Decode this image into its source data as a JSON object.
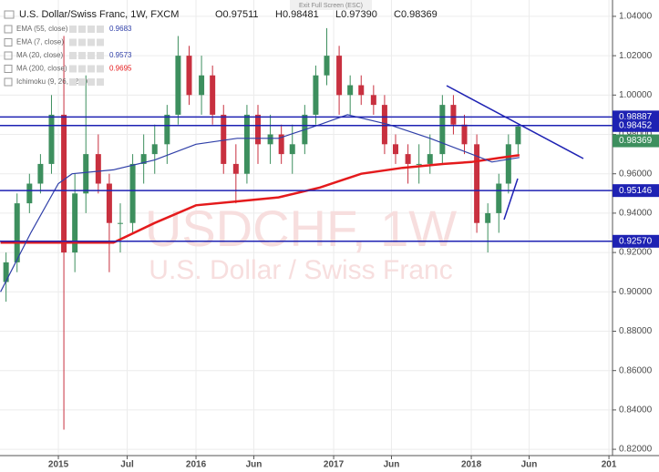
{
  "chart_data": {
    "type": "candlestick",
    "title": "U.S. Dollar/Swiss Franc, 1W, FXCM",
    "ohlc_header": [
      "O0.97511",
      "H0.98481",
      "L0.97390",
      "C0.98369"
    ],
    "exit_fullscreen": "Exit Full Screen (ESC)",
    "watermark": [
      "USDCHF, 1W",
      "U.S. Dollar / Swiss Franc"
    ],
    "x": [
      2014.62,
      2014.7,
      2014.79,
      2014.87,
      2014.95,
      2015.04,
      2015.12,
      2015.2,
      2015.29,
      2015.37,
      2015.45,
      2015.54,
      2015.62,
      2015.7,
      2015.79,
      2015.87,
      2015.95,
      2016.04,
      2016.12,
      2016.2,
      2016.29,
      2016.37,
      2016.45,
      2016.54,
      2016.62,
      2016.7,
      2016.79,
      2016.87,
      2016.95,
      2017.04,
      2017.12,
      2017.2,
      2017.29,
      2017.37,
      2017.45,
      2017.54,
      2017.62,
      2017.7,
      2017.79,
      2017.87,
      2017.95,
      2018.04,
      2018.12,
      2018.2,
      2018.27,
      2018.34
    ],
    "open": [
      0.905,
      0.915,
      0.945,
      0.955,
      0.965,
      0.99,
      0.92,
      0.95,
      0.97,
      0.955,
      0.935,
      0.935,
      0.965,
      0.97,
      0.975,
      0.99,
      1.02,
      1.0,
      1.01,
      0.99,
      0.965,
      0.96,
      0.99,
      0.975,
      0.98,
      0.97,
      0.975,
      0.99,
      1.01,
      1.02,
      1.0,
      1.005,
      1.0,
      0.995,
      0.975,
      0.97,
      0.965,
      0.965,
      0.97,
      0.995,
      0.985,
      0.975,
      0.935,
      0.94,
      0.955,
      0.975
    ],
    "high": [
      0.92,
      0.95,
      0.96,
      0.97,
      1.0,
      1.03,
      0.96,
      1.01,
      0.98,
      0.96,
      0.945,
      0.97,
      0.98,
      0.985,
      0.995,
      1.03,
      1.025,
      1.02,
      1.015,
      0.995,
      0.975,
      0.995,
      0.995,
      0.99,
      0.985,
      0.985,
      0.995,
      1.015,
      1.034,
      1.025,
      1.01,
      1.01,
      1.005,
      1.0,
      0.98,
      0.975,
      0.975,
      0.98,
      1.0,
      1.0,
      0.99,
      0.98,
      0.945,
      0.96,
      0.98,
      0.9848
    ],
    "low": [
      0.895,
      0.91,
      0.94,
      0.95,
      0.96,
      0.83,
      0.91,
      0.94,
      0.95,
      0.91,
      0.92,
      0.93,
      0.955,
      0.96,
      0.965,
      0.985,
      0.995,
      0.99,
      0.985,
      0.96,
      0.945,
      0.955,
      0.965,
      0.965,
      0.965,
      0.96,
      0.97,
      0.985,
      1.005,
      0.99,
      0.99,
      0.995,
      0.99,
      0.97,
      0.965,
      0.955,
      0.955,
      0.96,
      0.965,
      0.98,
      0.97,
      0.93,
      0.92,
      0.93,
      0.95,
      0.97
    ],
    "close": [
      0.915,
      0.945,
      0.955,
      0.965,
      0.99,
      0.92,
      0.95,
      0.97,
      0.955,
      0.935,
      0.935,
      0.965,
      0.97,
      0.975,
      0.99,
      1.02,
      1.0,
      1.01,
      0.99,
      0.965,
      0.96,
      0.99,
      0.975,
      0.98,
      0.97,
      0.975,
      0.99,
      1.01,
      1.02,
      1.0,
      1.005,
      1.0,
      0.995,
      0.975,
      0.97,
      0.965,
      0.965,
      0.97,
      0.995,
      0.985,
      0.975,
      0.935,
      0.94,
      0.955,
      0.975,
      0.984
    ],
    "up_color": "#3d8f5e",
    "down_color": "#c8303f",
    "series": [
      {
        "name": "MA (200, close)",
        "color": "#e41a1c",
        "legend_value": "0.9695",
        "x": [
          2014.58,
          2015.0,
          2015.4,
          2015.7,
          2016.0,
          2016.3,
          2016.6,
          2016.9,
          2017.2,
          2017.5,
          2017.8,
          2018.0,
          2018.2,
          2018.35
        ],
        "values": [
          0.925,
          0.925,
          0.925,
          0.935,
          0.944,
          0.946,
          0.948,
          0.953,
          0.96,
          0.963,
          0.965,
          0.966,
          0.968,
          0.9695
        ]
      },
      {
        "name": "EMA (55, close)",
        "color": "#2f3fa8",
        "legend_value": "0.9683",
        "x": [
          2014.58,
          2014.8,
          2015.0,
          2015.1,
          2015.4,
          2015.7,
          2016.0,
          2016.3,
          2016.6,
          2016.9,
          2017.1,
          2017.4,
          2017.7,
          2018.0,
          2018.15,
          2018.35
        ],
        "values": [
          0.9,
          0.93,
          0.955,
          0.96,
          0.962,
          0.967,
          0.975,
          0.978,
          0.978,
          0.985,
          0.99,
          0.985,
          0.978,
          0.97,
          0.966,
          0.9683
        ]
      }
    ],
    "other_indicators": [
      {
        "name": "EMA (7, close)"
      },
      {
        "name": "MA (20, close)",
        "legend_value": "0.9573",
        "color": "#2f3fa8"
      },
      {
        "name": "Ichimoku (9, 26, 52, 26)"
      }
    ],
    "levels": {
      "values": [
        0.98887,
        0.98452,
        0.95146,
        0.9257
      ],
      "value_labels": [
        "0.98887",
        "0.98452",
        "0.95146",
        "0.92570"
      ],
      "color": "#1e22b3"
    },
    "last_price": {
      "value": 0.98369,
      "label": "0.98369",
      "color": "#3d8f5e"
    },
    "xlim": [
      2014.576,
      2019.026
    ],
    "xticks": [
      2015,
      {
        "value": 2015.5,
        "label": "Jul"
      },
      2016,
      {
        "value": 2016.42,
        "label": "Jun"
      },
      2017,
      {
        "value": 2017.42,
        "label": "Jun"
      },
      2018,
      {
        "value": 2018.42,
        "label": "Jun"
      },
      {
        "value": 2019,
        "label": "201"
      }
    ],
    "ylim": [
      0.8168,
      1.0483
    ],
    "yticks": [
      {
        "value": 0.82,
        "label": "0.82000"
      },
      {
        "value": 0.84,
        "label": "0.84000"
      },
      {
        "value": 0.86,
        "label": "0.86000"
      },
      {
        "value": 0.88,
        "label": "0.88000"
      },
      {
        "value": 0.9,
        "label": "0.90000"
      },
      {
        "value": 0.92,
        "label": "0.92000"
      },
      {
        "value": 0.94,
        "label": "0.94000"
      },
      {
        "value": 0.96,
        "label": "0.96000"
      },
      {
        "value": 0.98,
        "label": "0.98000"
      },
      {
        "value": 1.0,
        "label": "1.00000"
      },
      {
        "value": 1.02,
        "label": "1.02000"
      },
      {
        "value": 1.04,
        "label": "1.04000"
      }
    ],
    "grid": true
  }
}
